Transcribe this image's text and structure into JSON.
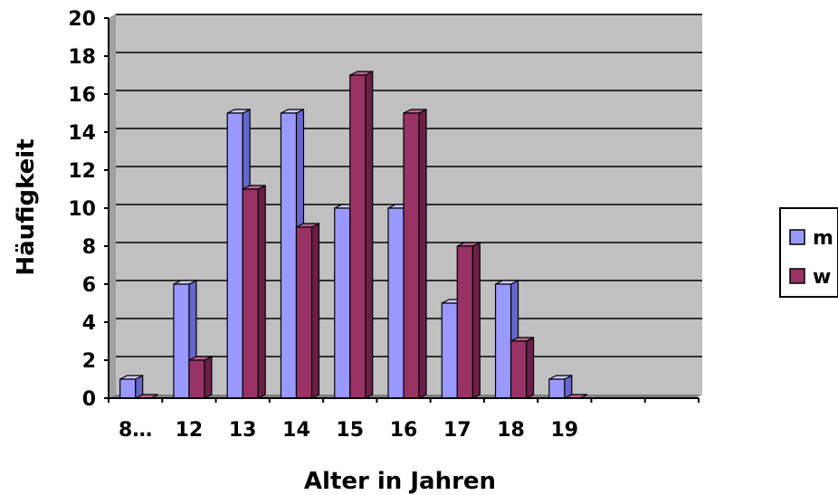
{
  "chart_data": {
    "type": "bar",
    "categories": [
      "8…",
      "12",
      "13",
      "14",
      "15",
      "16",
      "17",
      "18",
      "19",
      "",
      ""
    ],
    "series": [
      {
        "name": "m",
        "values": [
          1,
          6,
          15,
          15,
          10,
          10,
          5,
          6,
          1,
          0,
          0
        ]
      },
      {
        "name": "w",
        "values": [
          0,
          2,
          11,
          9,
          17,
          15,
          8,
          3,
          0,
          0,
          0
        ]
      }
    ],
    "yticks": [
      "0",
      "2",
      "4",
      "6",
      "8",
      "10",
      "12",
      "14",
      "16",
      "18",
      "20"
    ],
    "xlabel": "Alter in Jahren",
    "ylabel": "Häufigkeit",
    "ylim": [
      0,
      20
    ],
    "grid": true,
    "legend_position": "right",
    "colors": {
      "m_front": "#9999ff",
      "m_side": "#6666cc",
      "m_top": "#ccccff",
      "w_front": "#993366",
      "w_side": "#6b1f47",
      "w_top": "#b8668f",
      "plot_background": "#c0c0c0",
      "gridline": "#000000"
    }
  }
}
